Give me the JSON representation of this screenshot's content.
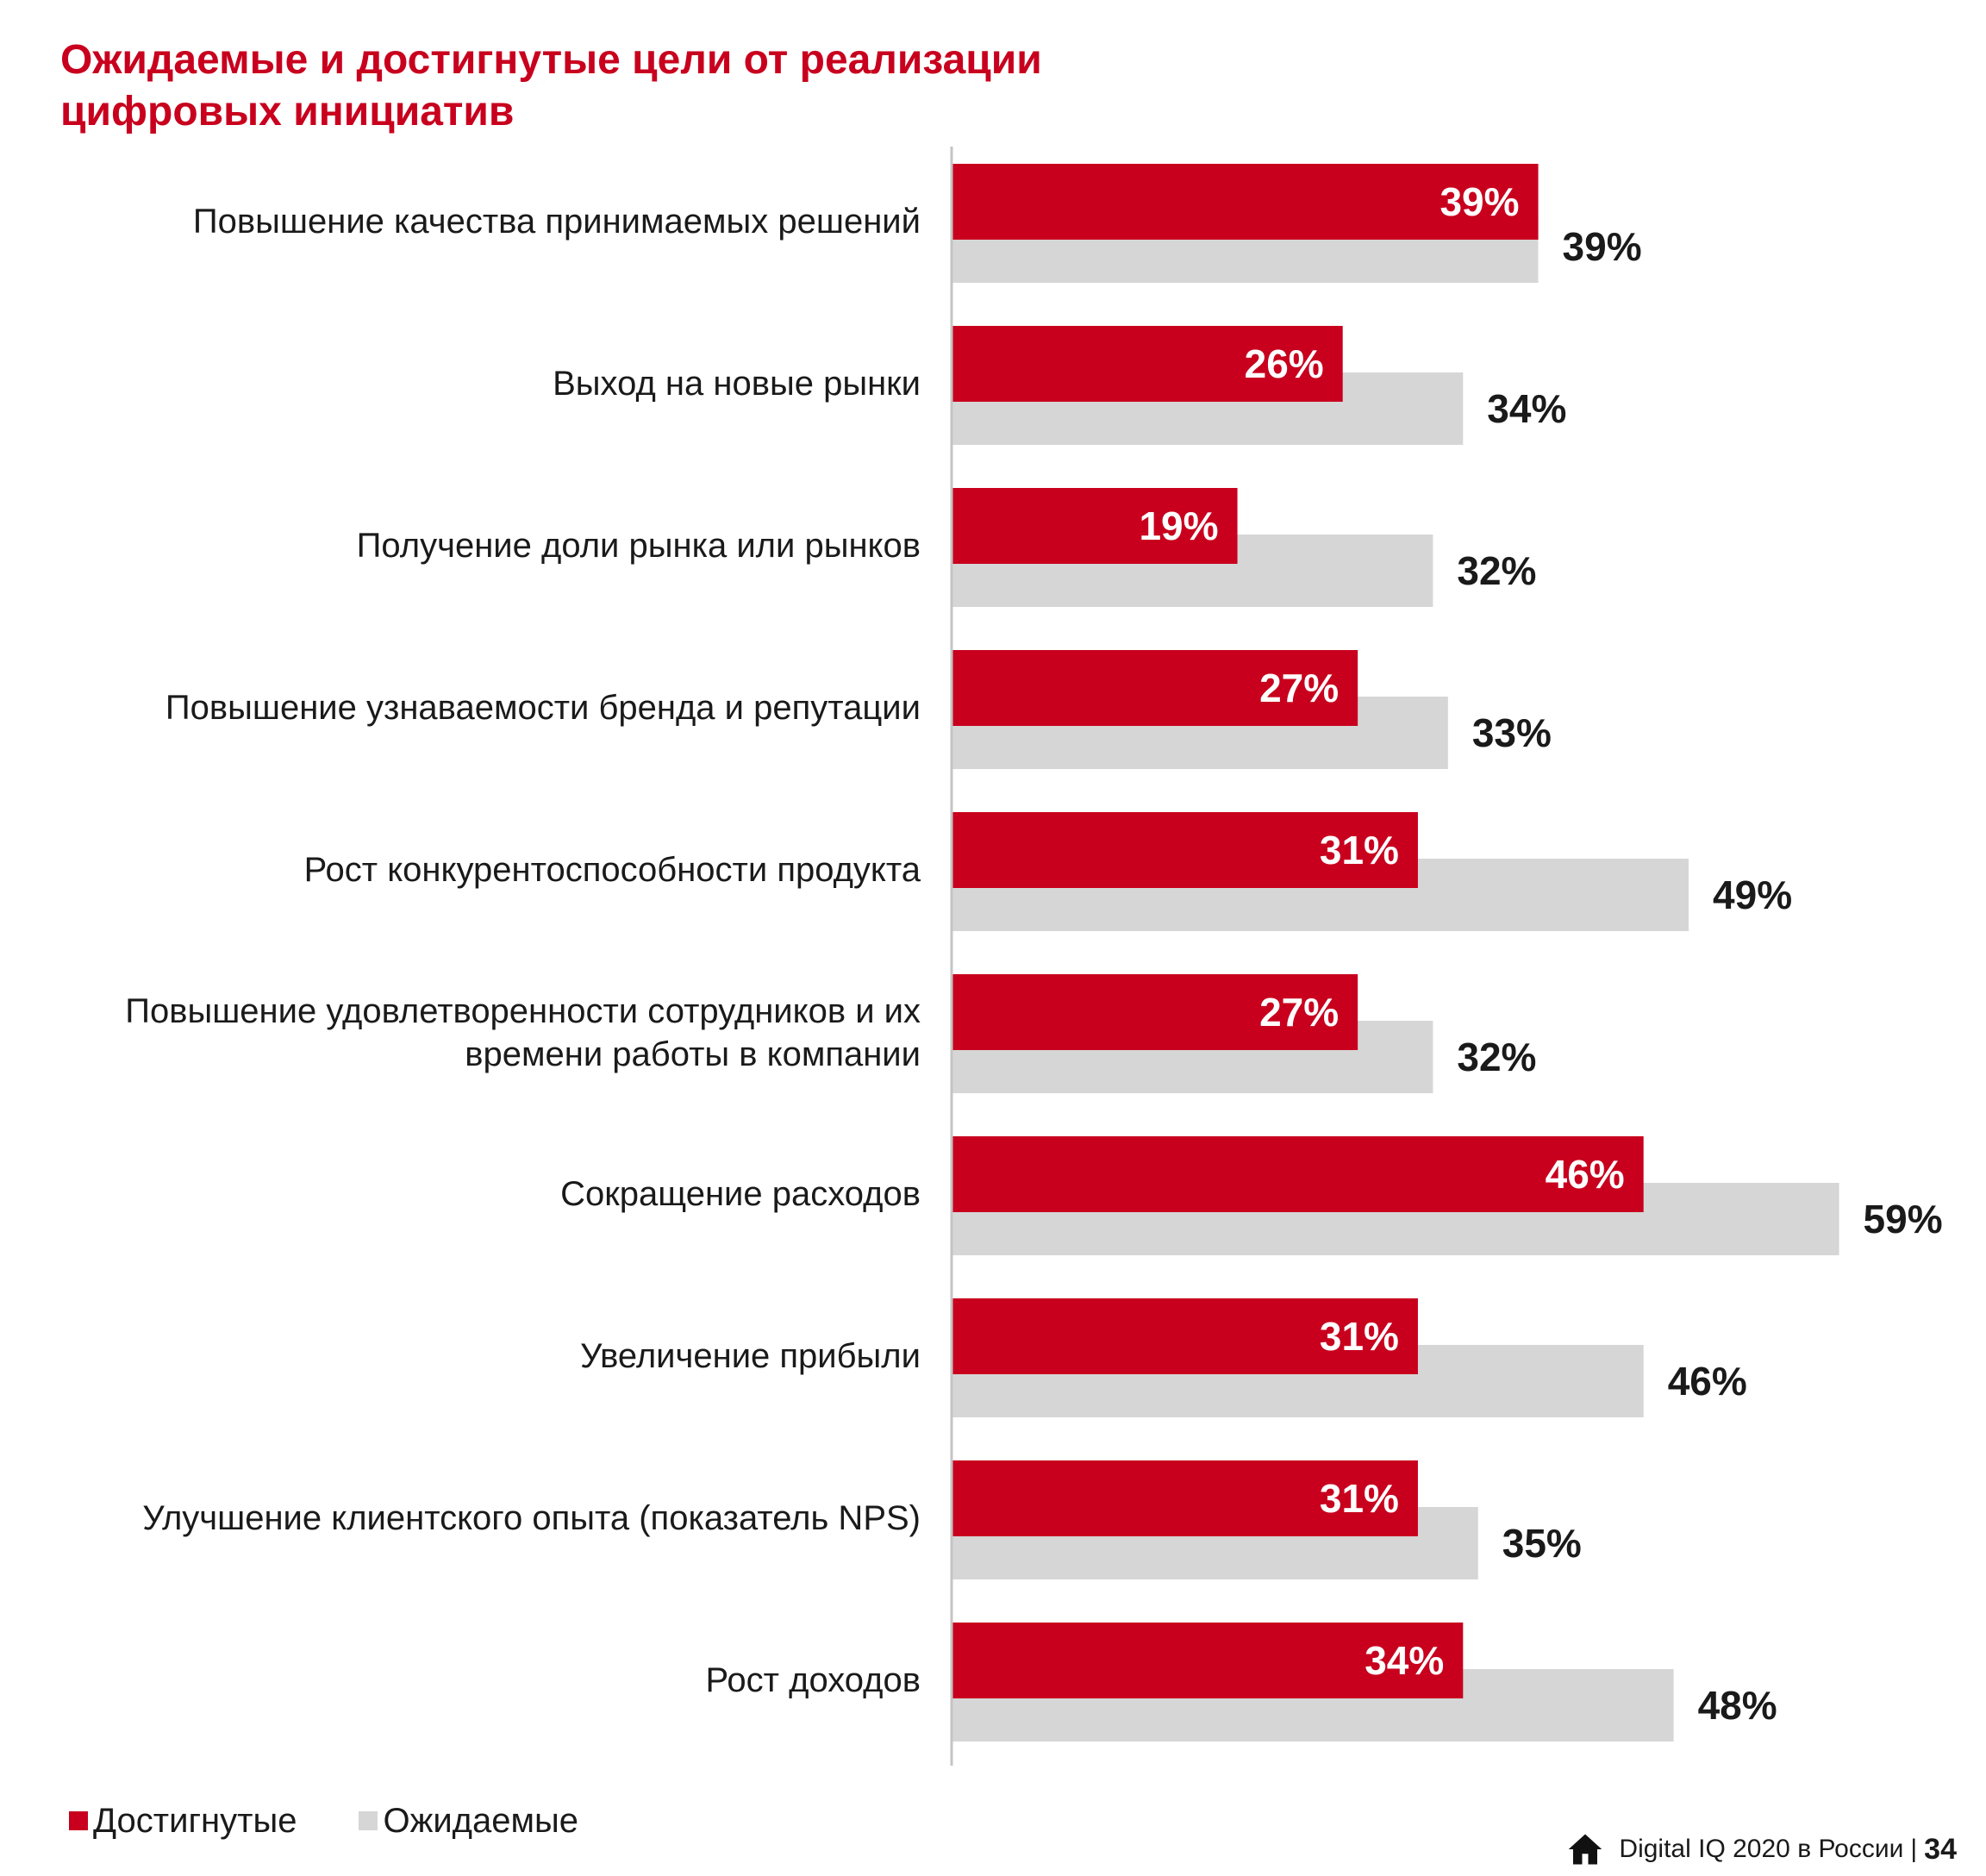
{
  "title": {
    "line1": "Ожидаемые и достигнутые  цели от реализации",
    "line2": "цифровых инициатив"
  },
  "colors": {
    "achieved": "#c8001e",
    "expected": "#d6d6d6",
    "title": "#c8001e",
    "text": "#1a1a1a"
  },
  "legend": {
    "achieved": "Достигнутые",
    "expected": "Ожидаемые"
  },
  "footer": {
    "icon": "home-icon",
    "text": "Digital IQ 2020 в России",
    "separator": "|",
    "page": "34"
  },
  "chart_data": {
    "type": "bar",
    "orientation": "horizontal",
    "title": "Ожидаемые и достигнутые  цели от реализации цифровых инициатив",
    "categories": [
      [
        "Повышение  качества  принимаемых  решений"
      ],
      [
        "Выход  на  новые  рынки"
      ],
      [
        "Получение  доли  рынка  или  рынков"
      ],
      [
        "Повышение  узнаваемости  бренда  и  репутации"
      ],
      [
        "Рост конкурентоспособности  продукта"
      ],
      [
        "Повышение  удовлетворенности  сотрудников  и  их",
        "времени  работы  в компании"
      ],
      [
        "Сокращение  расходов"
      ],
      [
        "Увеличение  прибыли"
      ],
      [
        "Улучшение  клиентского  опыта  (показатель  NPS)"
      ],
      [
        "Рост  доходов"
      ]
    ],
    "series": [
      {
        "name": "Достигнутые",
        "values": [
          39,
          26,
          19,
          27,
          31,
          27,
          46,
          31,
          31,
          34
        ],
        "labels": [
          "39%",
          "26%",
          "19%",
          "27%",
          "31%",
          "27%",
          "46%",
          "31%",
          "31%",
          "34%"
        ]
      },
      {
        "name": "Ожидаемые",
        "values": [
          39,
          34,
          32,
          33,
          49,
          32,
          59,
          46,
          35,
          48
        ],
        "labels": [
          "39%",
          "34%",
          "32%",
          "33%",
          "49%",
          "32%",
          "59%",
          "46%",
          "35%",
          "48%"
        ]
      }
    ],
    "xlim": [
      0,
      60
    ],
    "unit": "%",
    "legend_position": "bottom-left",
    "grid": false
  }
}
